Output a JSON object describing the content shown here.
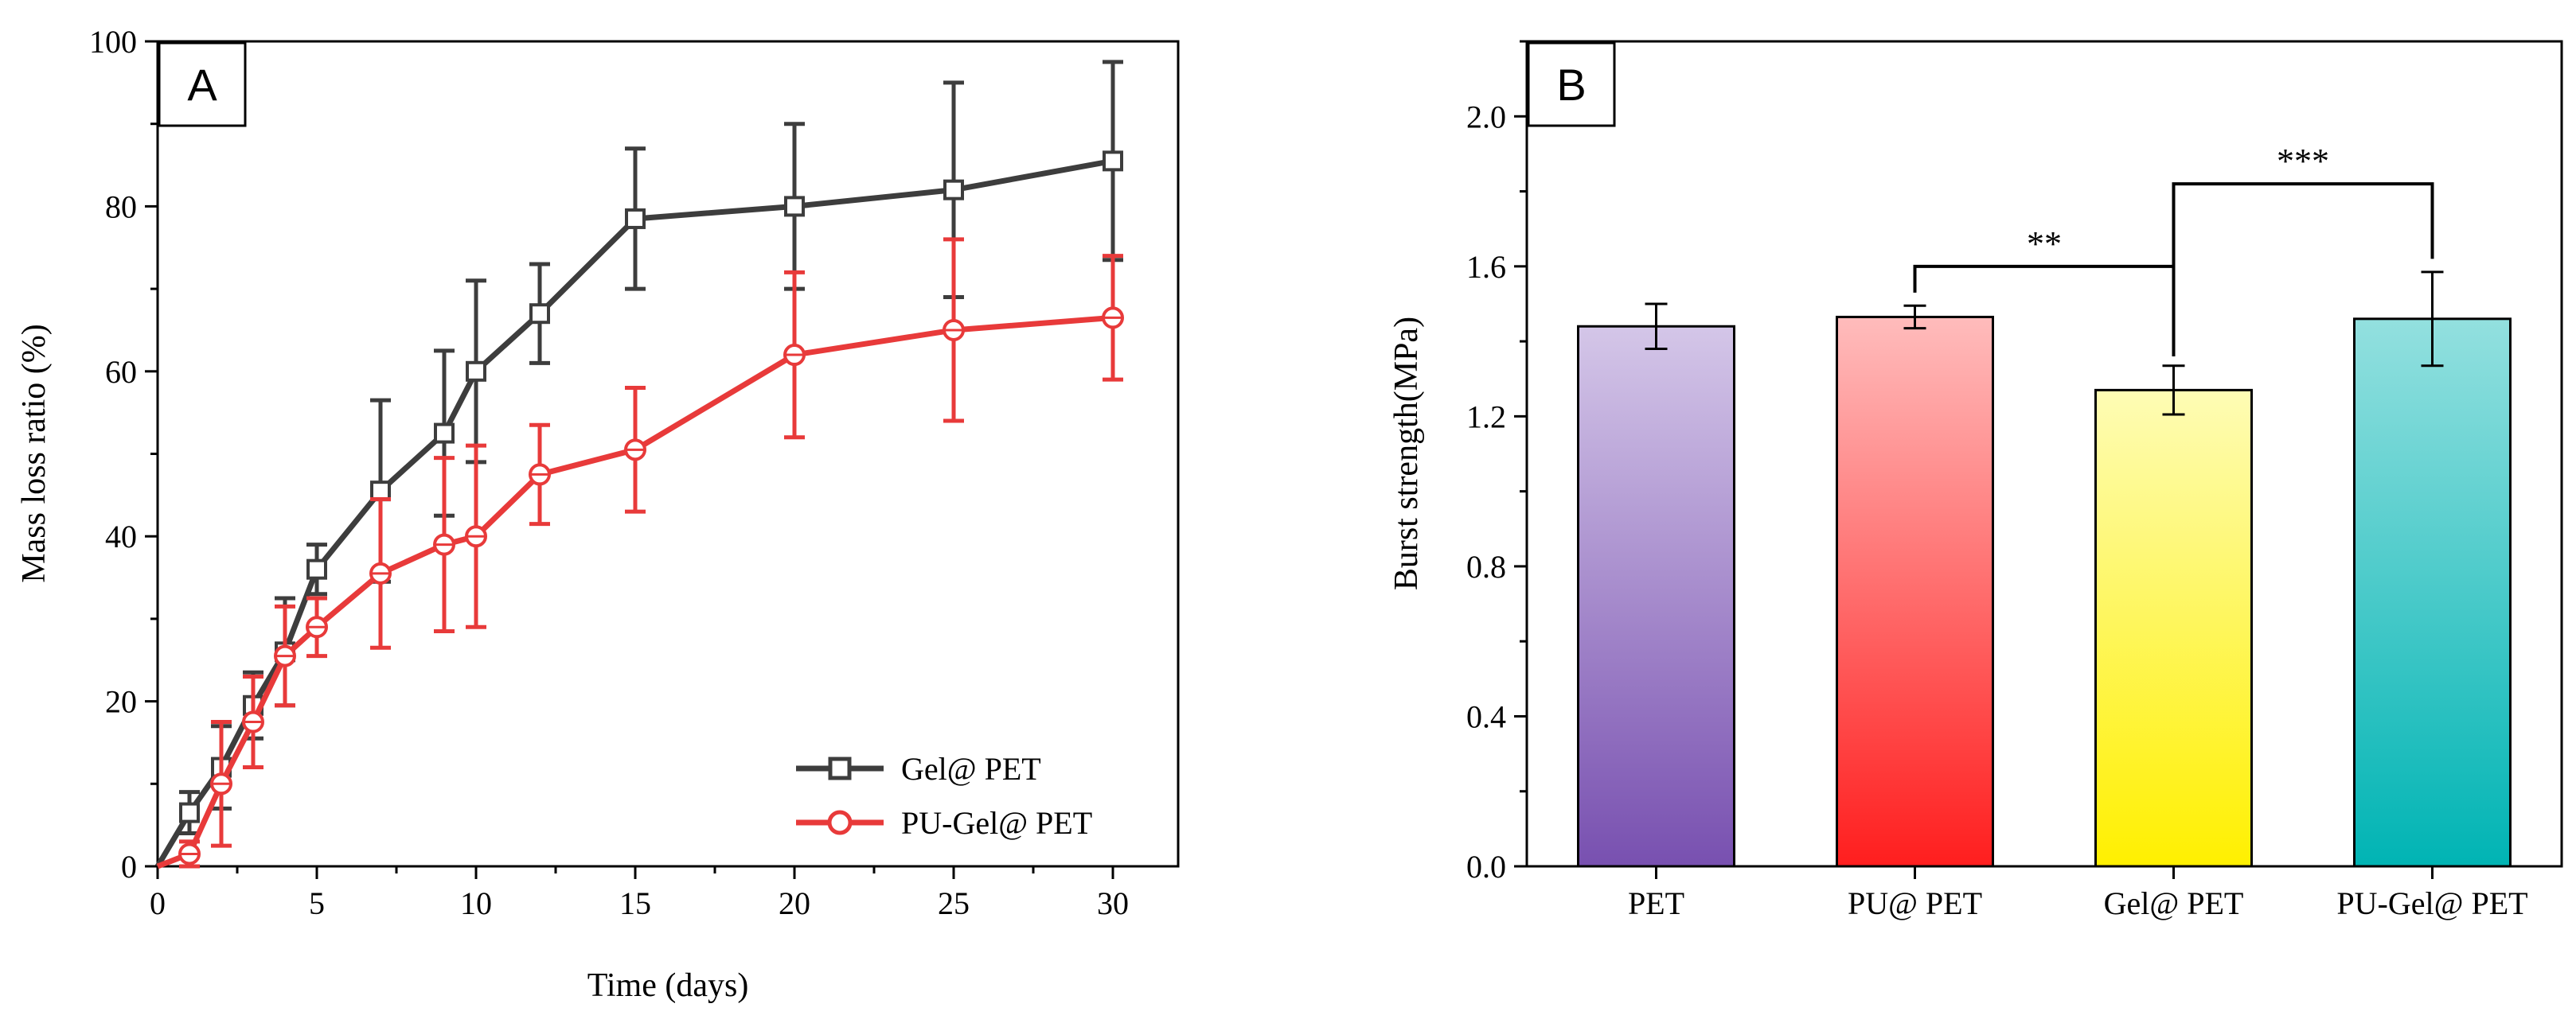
{
  "chart_data": [
    {
      "panel": "A",
      "type": "line",
      "xlabel": "Time (days)",
      "ylabel": "Mass loss ratio (%)",
      "xlim": [
        0,
        32
      ],
      "ylim": [
        0,
        100
      ],
      "xticks": [
        "0",
        "5",
        "10",
        "15",
        "20",
        "25",
        "30"
      ],
      "yticks": [
        "0",
        "20",
        "40",
        "60",
        "80",
        "100"
      ],
      "legend_position": "bottom-right",
      "series": [
        {
          "name": "Gel@ PET",
          "color": "#3d3d3d",
          "marker": "square",
          "x": [
            0,
            1,
            2,
            3,
            4,
            5,
            7,
            9,
            10,
            12,
            15,
            20,
            25,
            30
          ],
          "y": [
            0,
            6.5,
            12,
            19.5,
            26,
            36,
            45.5,
            52.5,
            60,
            67,
            78.5,
            80,
            82,
            85.5
          ],
          "err": [
            0,
            2.5,
            5,
            4,
            6.5,
            3,
            11,
            10,
            11,
            6,
            8.5,
            10,
            13,
            12
          ]
        },
        {
          "name": "PU-Gel@ PET",
          "color": "#e83a3a",
          "marker": "circle",
          "x": [
            0,
            1,
            2,
            3,
            4,
            5,
            7,
            9,
            10,
            12,
            15,
            20,
            25,
            30
          ],
          "y": [
            0,
            1.5,
            10,
            17.5,
            25.5,
            29,
            35.5,
            39,
            40,
            47.5,
            50.5,
            62,
            65,
            66.5
          ],
          "err": [
            0,
            1.5,
            7.5,
            5.5,
            6,
            3.5,
            9,
            10.5,
            11,
            6,
            7.5,
            10,
            11,
            7.5
          ]
        }
      ]
    },
    {
      "panel": "B",
      "type": "bar",
      "xlabel": "",
      "ylabel": "Burst strength(MPa)",
      "ylim": [
        0,
        2.2
      ],
      "yticks": [
        "0.0",
        "0.4",
        "0.8",
        "1.2",
        "1.6",
        "2.0"
      ],
      "categories": [
        "PET",
        "PU@ PET",
        "Gel@ PET",
        "PU-Gel@ PET"
      ],
      "values": [
        1.44,
        1.465,
        1.27,
        1.46
      ],
      "errors": [
        0.06,
        0.03,
        0.065,
        0.125
      ],
      "bar_colors": [
        {
          "top": "#d4c6e8",
          "bottom": "#7850b0"
        },
        {
          "top": "#ffbcbc",
          "bottom": "#ff1e1e"
        },
        {
          "top": "#fefcb5",
          "bottom": "#fff000"
        },
        {
          "top": "#93e0df",
          "bottom": "#00b4b4"
        }
      ],
      "significance": [
        {
          "from": "PU@ PET",
          "to": "Gel@ PET",
          "label": "**"
        },
        {
          "from": "Gel@ PET",
          "to": "PU-Gel@ PET",
          "label": "***"
        }
      ]
    }
  ]
}
